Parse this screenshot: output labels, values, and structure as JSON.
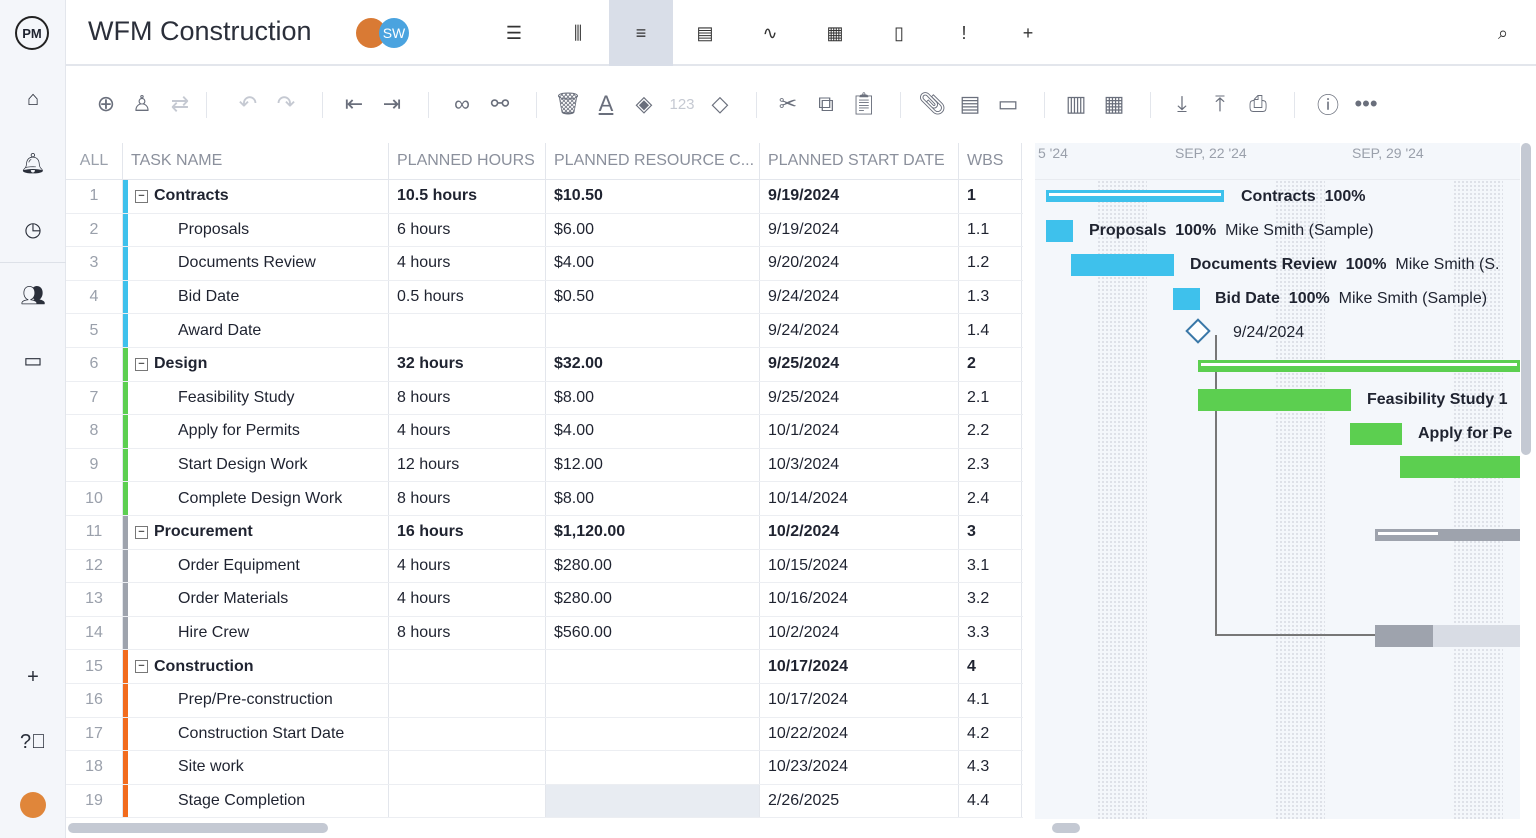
{
  "app": {
    "logo": "PM",
    "title": "WFM Construction",
    "avatar_initials": "SW"
  },
  "views": [
    {
      "icon": "list-icon",
      "glyph": "☰"
    },
    {
      "icon": "board-icon",
      "glyph": "⫼"
    },
    {
      "icon": "gantt-icon",
      "glyph": "≡"
    },
    {
      "icon": "sheet-icon",
      "glyph": "▤"
    },
    {
      "icon": "dashboard-icon",
      "glyph": "∿"
    },
    {
      "icon": "calendar-icon",
      "glyph": "▦"
    },
    {
      "icon": "document-icon",
      "glyph": "▯"
    },
    {
      "icon": "risk-icon",
      "glyph": "!"
    },
    {
      "icon": "add-view-icon",
      "glyph": "+"
    }
  ],
  "toolbar": {
    "placeholder_number": "123"
  },
  "columns": [
    "ALL",
    "TASK NAME",
    "PLANNED HOURS",
    "PLANNED RESOURCE C...",
    "PLANNED START DATE",
    "WBS"
  ],
  "rows": [
    {
      "n": "1",
      "name": "Contracts",
      "hours": "10.5 hours",
      "cost": "$10.50",
      "start": "9/19/2024",
      "wbs": "1",
      "group": true,
      "color": "#3ec1ec"
    },
    {
      "n": "2",
      "name": "Proposals",
      "hours": "6 hours",
      "cost": "$6.00",
      "start": "9/19/2024",
      "wbs": "1.1",
      "color": "#3ec1ec"
    },
    {
      "n": "3",
      "name": "Documents Review",
      "hours": "4 hours",
      "cost": "$4.00",
      "start": "9/20/2024",
      "wbs": "1.2",
      "color": "#3ec1ec"
    },
    {
      "n": "4",
      "name": "Bid Date",
      "hours": "0.5 hours",
      "cost": "$0.50",
      "start": "9/24/2024",
      "wbs": "1.3",
      "color": "#3ec1ec"
    },
    {
      "n": "5",
      "name": "Award Date",
      "hours": "",
      "cost": "",
      "start": "9/24/2024",
      "wbs": "1.4",
      "color": "#3ec1ec"
    },
    {
      "n": "6",
      "name": "Design",
      "hours": "32 hours",
      "cost": "$32.00",
      "start": "9/25/2024",
      "wbs": "2",
      "group": true,
      "color": "#5ccf50"
    },
    {
      "n": "7",
      "name": "Feasibility Study",
      "hours": "8 hours",
      "cost": "$8.00",
      "start": "9/25/2024",
      "wbs": "2.1",
      "color": "#5ccf50"
    },
    {
      "n": "8",
      "name": "Apply for Permits",
      "hours": "4 hours",
      "cost": "$4.00",
      "start": "10/1/2024",
      "wbs": "2.2",
      "color": "#5ccf50"
    },
    {
      "n": "9",
      "name": "Start Design Work",
      "hours": "12 hours",
      "cost": "$12.00",
      "start": "10/3/2024",
      "wbs": "2.3",
      "color": "#5ccf50"
    },
    {
      "n": "10",
      "name": "Complete Design Work",
      "hours": "8 hours",
      "cost": "$8.00",
      "start": "10/14/2024",
      "wbs": "2.4",
      "color": "#5ccf50"
    },
    {
      "n": "11",
      "name": "Procurement",
      "hours": "16 hours",
      "cost": "$1,120.00",
      "start": "10/2/2024",
      "wbs": "3",
      "group": true,
      "color": "#9ea3ad"
    },
    {
      "n": "12",
      "name": "Order Equipment",
      "hours": "4 hours",
      "cost": "$280.00",
      "start": "10/15/2024",
      "wbs": "3.1",
      "color": "#9ea3ad"
    },
    {
      "n": "13",
      "name": "Order Materials",
      "hours": "4 hours",
      "cost": "$280.00",
      "start": "10/16/2024",
      "wbs": "3.2",
      "color": "#9ea3ad"
    },
    {
      "n": "14",
      "name": "Hire Crew",
      "hours": "8 hours",
      "cost": "$560.00",
      "start": "10/2/2024",
      "wbs": "3.3",
      "color": "#9ea3ad"
    },
    {
      "n": "15",
      "name": "Construction",
      "hours": "",
      "cost": "",
      "start": "10/17/2024",
      "wbs": "4",
      "group": true,
      "color": "#f26b1d"
    },
    {
      "n": "16",
      "name": "Prep/Pre-construction",
      "hours": "",
      "cost": "",
      "start": "10/17/2024",
      "wbs": "4.1",
      "color": "#f26b1d"
    },
    {
      "n": "17",
      "name": "Construction Start Date",
      "hours": "",
      "cost": "",
      "start": "10/22/2024",
      "wbs": "4.2",
      "color": "#f26b1d"
    },
    {
      "n": "18",
      "name": "Site work",
      "hours": "",
      "cost": "",
      "start": "10/23/2024",
      "wbs": "4.3",
      "color": "#f26b1d"
    },
    {
      "n": "19",
      "name": "Stage Completion",
      "hours": "",
      "cost": "",
      "start": "2/26/2025",
      "wbs": "4.4",
      "color": "#f26b1d"
    }
  ],
  "gantt": {
    "dates": [
      "5 '24",
      "SEP, 22 '24",
      "SEP, 29 '24"
    ],
    "labels": {
      "contracts": "Contracts",
      "contracts_pct": "100%",
      "proposals": "Proposals",
      "proposals_pct": "100%",
      "proposals_res": "Mike Smith (Sample)",
      "docs": "Documents Review",
      "docs_pct": "100%",
      "docs_res": "Mike Smith (S.",
      "bid": "Bid Date",
      "bid_pct": "100%",
      "bid_res": "Mike Smith (Sample)",
      "award": "9/24/2024",
      "feas": "Feasibility Study  1",
      "permits": "Apply for Pe"
    }
  }
}
